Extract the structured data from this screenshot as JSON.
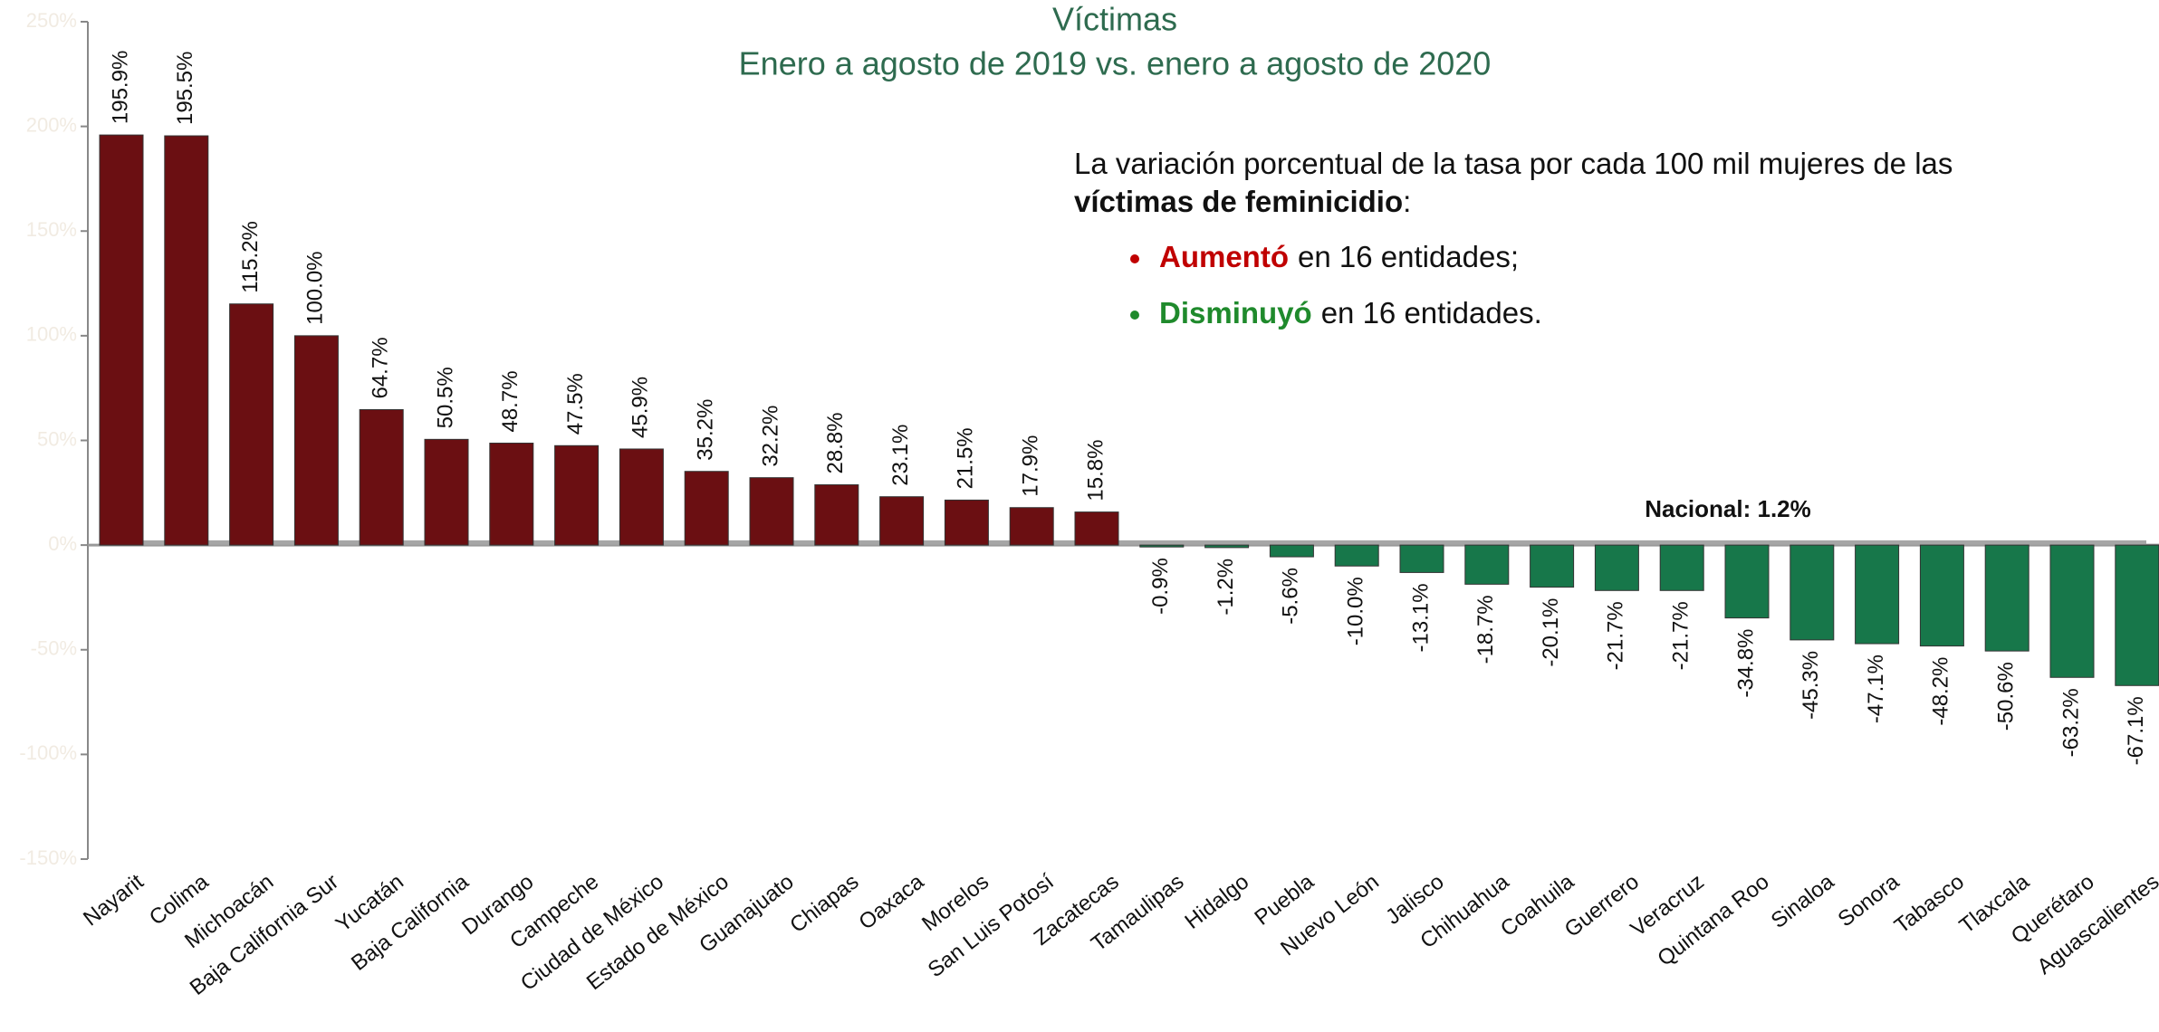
{
  "chart_data": {
    "type": "bar",
    "title": "Víctimas",
    "subtitle": "Enero a agosto de 2019 vs. enero a agosto de 2020",
    "categories": [
      "Nayarit",
      "Colima",
      "Michoacán",
      "Baja California Sur",
      "Yucatán",
      "Baja California",
      "Durango",
      "Campeche",
      "Ciudad de México",
      "Estado de México",
      "Guanajuato",
      "Chiapas",
      "Oaxaca",
      "Morelos",
      "San Luis Potosí",
      "Zacatecas",
      "Tamaulipas",
      "Hidalgo",
      "Puebla",
      "Nuevo León",
      "Jalisco",
      "Chihuahua",
      "Coahuila",
      "Guerrero",
      "Veracruz",
      "Quintana Roo",
      "Sinaloa",
      "Sonora",
      "Tabasco",
      "Tlaxcala",
      "Querétaro",
      "Aguascalientes"
    ],
    "values": [
      195.9,
      195.5,
      115.2,
      100.0,
      64.7,
      50.5,
      48.7,
      47.5,
      45.9,
      35.2,
      32.2,
      28.8,
      23.1,
      21.5,
      17.9,
      15.8,
      -0.9,
      -1.2,
      -5.6,
      -10.0,
      -13.1,
      -18.7,
      -20.1,
      -21.7,
      -21.7,
      -34.8,
      -45.3,
      -47.1,
      -48.2,
      -50.6,
      -63.2,
      -67.1
    ],
    "value_labels": [
      "195.9%",
      "195.5%",
      "115.2%",
      "100.0%",
      "64.7%",
      "50.5%",
      "48.7%",
      "47.5%",
      "45.9%",
      "35.2%",
      "32.2%",
      "28.8%",
      "23.1%",
      "21.5%",
      "17.9%",
      "15.8%",
      "-0.9%",
      "-1.2%",
      "-5.6%",
      "-10.0%",
      "-13.1%",
      "-18.7%",
      "-20.1%",
      "-21.7%",
      "-21.7%",
      "-34.8%",
      "-45.3%",
      "-47.1%",
      "-48.2%",
      "-50.6%",
      "-63.2%",
      "-67.1%"
    ],
    "color_positive": "#6b0f12",
    "color_negative": "#17774a",
    "ylim": [
      -150,
      250
    ],
    "yticks": [
      {
        "value": -150,
        "label": "-150%"
      },
      {
        "value": -100,
        "label": "-100%"
      },
      {
        "value": -50,
        "label": "-50%"
      },
      {
        "value": 0,
        "label": "0%"
      },
      {
        "value": 50,
        "label": "50%"
      },
      {
        "value": 100,
        "label": "100%"
      },
      {
        "value": 150,
        "label": "150%"
      },
      {
        "value": 200,
        "label": "200%"
      },
      {
        "value": 250,
        "label": "250%"
      }
    ],
    "reference_line": {
      "label": "Nacional: 1.2%",
      "value": 1.2
    },
    "note": {
      "line1": "La variación porcentual de la tasa por cada 100 mil mujeres de las",
      "bold": "víctimas de feminicidio",
      "tail": ":",
      "bullets": [
        {
          "strong": "Aumentó",
          "rest": "en 16 entidades;",
          "color": "#c00000"
        },
        {
          "strong": "Disminuyó",
          "rest": "en 16 entidades.",
          "color": "#1f8a2c"
        }
      ]
    }
  }
}
